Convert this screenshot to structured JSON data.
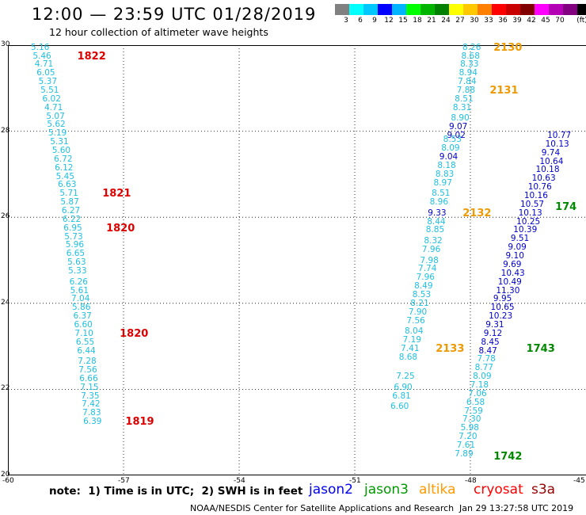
{
  "header": {
    "title": "12:00 — 23:59 UTC 01/28/2019",
    "subtitle": "12 hour collection of altimeter wave heights"
  },
  "colorbar": {
    "unit_label": "(ft)",
    "colors": [
      "#808080",
      "#00ffff",
      "#00c8ff",
      "#0000ff",
      "#00b4ff",
      "#00ff00",
      "#00b400",
      "#008000",
      "#ffff00",
      "#ffc800",
      "#ff8000",
      "#ff0000",
      "#c80000",
      "#800000",
      "#ff00ff",
      "#b400b4",
      "#800080",
      "#000000"
    ],
    "labels": [
      "3",
      "6",
      "9",
      "12",
      "15",
      "18",
      "21",
      "24",
      "27",
      "30",
      "33",
      "36",
      "39",
      "42",
      "45",
      "70"
    ]
  },
  "axes": {
    "y_ticks": [
      "30",
      "28",
      "26",
      "24",
      "22",
      "20"
    ],
    "x_ticks": [
      "-60",
      "-57",
      "-54",
      "-51",
      "-48",
      "-45"
    ]
  },
  "tracks": [
    {
      "name": "track-west",
      "color": "#1fc0e0",
      "points": [
        [
          "5.16",
          29.95,
          -59.2
        ],
        [
          "5.46",
          29.75,
          -59.15
        ],
        [
          "4.71",
          29.55,
          -59.1
        ],
        [
          "6.05",
          29.35,
          -59.05
        ],
        [
          "5.37",
          29.15,
          -59.0
        ],
        [
          "5.51",
          28.95,
          -58.95
        ],
        [
          "6.02",
          28.75,
          -58.9
        ],
        [
          "4.71",
          28.55,
          -58.85
        ],
        [
          "5.07",
          28.35,
          -58.8
        ],
        [
          "5.62",
          28.15,
          -58.78
        ],
        [
          "5.19",
          27.95,
          -58.75
        ],
        [
          "5.31",
          27.75,
          -58.7
        ],
        [
          "5.60",
          27.55,
          -58.65
        ],
        [
          "6.72",
          27.35,
          -58.6
        ],
        [
          "6.12",
          27.15,
          -58.58
        ],
        [
          "5.45",
          26.95,
          -58.55
        ],
        [
          "6.63",
          26.75,
          -58.5
        ],
        [
          "5.71",
          26.55,
          -58.45
        ],
        [
          "5.87",
          26.35,
          -58.43
        ],
        [
          "6.27",
          26.15,
          -58.4
        ],
        [
          "6.22",
          25.95,
          -58.38
        ],
        [
          "6.95",
          25.75,
          -58.35
        ],
        [
          "5.73",
          25.55,
          -58.33
        ],
        [
          "5.96",
          25.35,
          -58.3
        ],
        [
          "6.65",
          25.15,
          -58.28
        ],
        [
          "5.63",
          24.95,
          -58.25
        ],
        [
          "5.33",
          24.75,
          -58.23
        ],
        [
          "6.26",
          24.5,
          -58.2
        ],
        [
          "5.61",
          24.3,
          -58.18
        ],
        [
          "7.04",
          24.1,
          -58.15
        ],
        [
          "5.86",
          23.9,
          -58.13
        ],
        [
          "6.37",
          23.7,
          -58.1
        ],
        [
          "6.60",
          23.5,
          -58.08
        ],
        [
          "7.10",
          23.3,
          -58.06
        ],
        [
          "6.55",
          23.1,
          -58.03
        ],
        [
          "6.44",
          22.9,
          -58.0
        ],
        [
          "7.28",
          22.65,
          -57.98
        ],
        [
          "7.56",
          22.45,
          -57.96
        ],
        [
          "6.66",
          22.25,
          -57.94
        ],
        [
          "7.15",
          22.05,
          -57.92
        ],
        [
          "7.35",
          21.85,
          -57.9
        ],
        [
          "7.42",
          21.65,
          -57.88
        ],
        [
          "7.83",
          21.45,
          -57.86
        ],
        [
          "6.39",
          21.25,
          -57.84
        ]
      ]
    },
    {
      "name": "track-middle",
      "color": "#1fc0e0",
      "points": [
        [
          "8.26",
          29.95,
          -48.0
        ],
        [
          "8.68",
          29.75,
          -48.03
        ],
        [
          "8.33",
          29.55,
          -48.06
        ],
        [
          "8.94",
          29.35,
          -48.09
        ],
        [
          "7.84",
          29.15,
          -48.12
        ],
        [
          "7.88",
          28.95,
          -48.15
        ],
        [
          "8.51",
          28.75,
          -48.2
        ],
        [
          "8.31",
          28.55,
          -48.25
        ],
        [
          "8.90",
          28.3,
          -48.3
        ]
      ]
    },
    {
      "name": "track-middle-low",
      "color": "#1fc0e0",
      "points": [
        [
          "8.53",
          27.8,
          -48.5
        ],
        [
          "8.09",
          27.6,
          -48.55
        ],
        [
          "8.18",
          27.2,
          -48.65
        ],
        [
          "8.83",
          27.0,
          -48.7
        ],
        [
          "8.97",
          26.8,
          -48.75
        ],
        [
          "8.51",
          26.55,
          -48.8
        ],
        [
          "8.96",
          26.35,
          -48.85
        ],
        [
          "8.44",
          25.9,
          -48.92
        ],
        [
          "8.85",
          25.7,
          -48.95
        ],
        [
          "8.32",
          25.45,
          -49.0
        ],
        [
          "7.96",
          25.25,
          -49.05
        ],
        [
          "7.98",
          25.0,
          -49.1
        ],
        [
          "7.74",
          24.8,
          -49.15
        ],
        [
          "7.96",
          24.6,
          -49.2
        ],
        [
          "8.49",
          24.4,
          -49.25
        ],
        [
          "8.53",
          24.2,
          -49.3
        ],
        [
          "8.21",
          24.0,
          -49.35
        ],
        [
          "7.90",
          23.8,
          -49.4
        ],
        [
          "7.56",
          23.6,
          -49.45
        ],
        [
          "8.04",
          23.35,
          -49.5
        ],
        [
          "7.19",
          23.15,
          -49.55
        ],
        [
          "7.41",
          22.95,
          -49.6
        ],
        [
          "8.68",
          22.75,
          -49.65
        ],
        [
          "7.25",
          22.3,
          -49.72
        ],
        [
          "6.90",
          22.05,
          -49.78
        ],
        [
          "6.81",
          21.85,
          -49.82
        ],
        [
          "6.60",
          21.6,
          -49.87
        ]
      ]
    },
    {
      "name": "track-middle-dark",
      "color": "#0000cc",
      "points": [
        [
          "9.07",
          28.1,
          -48.35
        ],
        [
          "9.02",
          27.9,
          -48.4
        ],
        [
          "9.04",
          27.4,
          -48.6
        ],
        [
          "9.33",
          26.1,
          -48.9
        ]
      ]
    },
    {
      "name": "track-east-dark",
      "color": "#0000cc",
      "points": [
        [
          "10.16",
          26.5,
          -46.4
        ],
        [
          "10.57",
          26.3,
          -46.5
        ],
        [
          "10.13",
          26.1,
          -46.55
        ],
        [
          "10.25",
          25.9,
          -46.6
        ],
        [
          "10.39",
          25.7,
          -46.68
        ],
        [
          "9.51",
          25.5,
          -46.75
        ],
        [
          "9.09",
          25.3,
          -46.82
        ],
        [
          "9.10",
          25.1,
          -46.88
        ],
        [
          "9.69",
          24.9,
          -46.95
        ],
        [
          "10.43",
          24.7,
          -47.0
        ],
        [
          "10.49",
          24.5,
          -47.08
        ],
        [
          "11.30",
          24.3,
          -47.13
        ],
        [
          "9.95",
          24.1,
          -47.2
        ],
        [
          "10.65",
          23.9,
          -47.27
        ],
        [
          "10.23",
          23.7,
          -47.32
        ],
        [
          "9.31",
          23.5,
          -47.4
        ],
        [
          "9.12",
          23.3,
          -47.45
        ],
        [
          "8.45",
          23.1,
          -47.52
        ],
        [
          "8.47",
          22.9,
          -47.58
        ],
        [
          "10.63",
          26.9,
          -46.2
        ],
        [
          "10.76",
          26.7,
          -46.3
        ],
        [
          "10.18",
          27.1,
          -46.1
        ],
        [
          "10.64",
          27.3,
          -46.0
        ],
        [
          "9.74",
          27.5,
          -45.95
        ],
        [
          "10.13",
          27.7,
          -45.85
        ],
        [
          "10.77",
          27.9,
          -45.8
        ]
      ]
    },
    {
      "name": "track-east-light",
      "color": "#1fc0e0",
      "points": [
        [
          "7.78",
          22.7,
          -47.62
        ],
        [
          "8.77",
          22.5,
          -47.68
        ],
        [
          "8.09",
          22.3,
          -47.73
        ],
        [
          "7.18",
          22.1,
          -47.8
        ],
        [
          "7.06",
          21.9,
          -47.85
        ],
        [
          "6.58",
          21.7,
          -47.9
        ],
        [
          "7.59",
          21.5,
          -47.95
        ],
        [
          "7.30",
          21.3,
          -48.0
        ],
        [
          "5.98",
          21.1,
          -48.05
        ],
        [
          "7.20",
          20.9,
          -48.1
        ],
        [
          "7.61",
          20.7,
          -48.15
        ],
        [
          "7.89",
          20.5,
          -48.2
        ]
      ]
    }
  ],
  "times": [
    {
      "label": "1822",
      "color": "#dd0000",
      "lat": 29.75,
      "lon": -58.2
    },
    {
      "label": "1821",
      "color": "#dd0000",
      "lat": 26.55,
      "lon": -57.55
    },
    {
      "label": "1820",
      "color": "#dd0000",
      "lat": 25.75,
      "lon": -57.45
    },
    {
      "label": "1820",
      "color": "#dd0000",
      "lat": 23.3,
      "lon": -57.1
    },
    {
      "label": "1819",
      "color": "#dd0000",
      "lat": 21.25,
      "lon": -56.95
    },
    {
      "label": "2130",
      "color": "#ee9900",
      "lat": 29.95,
      "lon": -47.4
    },
    {
      "label": "2131",
      "color": "#ee9900",
      "lat": 28.95,
      "lon": -47.5
    },
    {
      "label": "2132",
      "color": "#ee9900",
      "lat": 26.1,
      "lon": -48.2
    },
    {
      "label": "2133",
      "color": "#ee9900",
      "lat": 22.95,
      "lon": -48.9
    },
    {
      "label": "1743",
      "color": "#008800",
      "lat": 22.95,
      "lon": -46.55
    },
    {
      "label": "1742",
      "color": "#008800",
      "lat": 20.45,
      "lon": -47.4
    },
    {
      "label": "174",
      "color": "#008800",
      "lat": 26.25,
      "lon": -45.8
    }
  ],
  "footer": {
    "note": "note:  1) Time is in UTC;  2) SWH is in feet",
    "satellites": [
      {
        "name": "jason2",
        "color": "#0000ee"
      },
      {
        "name": "jason3",
        "color": "#009900"
      },
      {
        "name": "altika",
        "color": "#ff9900"
      },
      {
        "name": "cryosat",
        "color": "#ff0000"
      },
      {
        "name": "s3a",
        "color": "#990000"
      }
    ],
    "credit": "NOAA/NESDIS Center for Satellite Applications and Research",
    "timestamp": "Jan 29 13:27:58 UTC 2019"
  }
}
